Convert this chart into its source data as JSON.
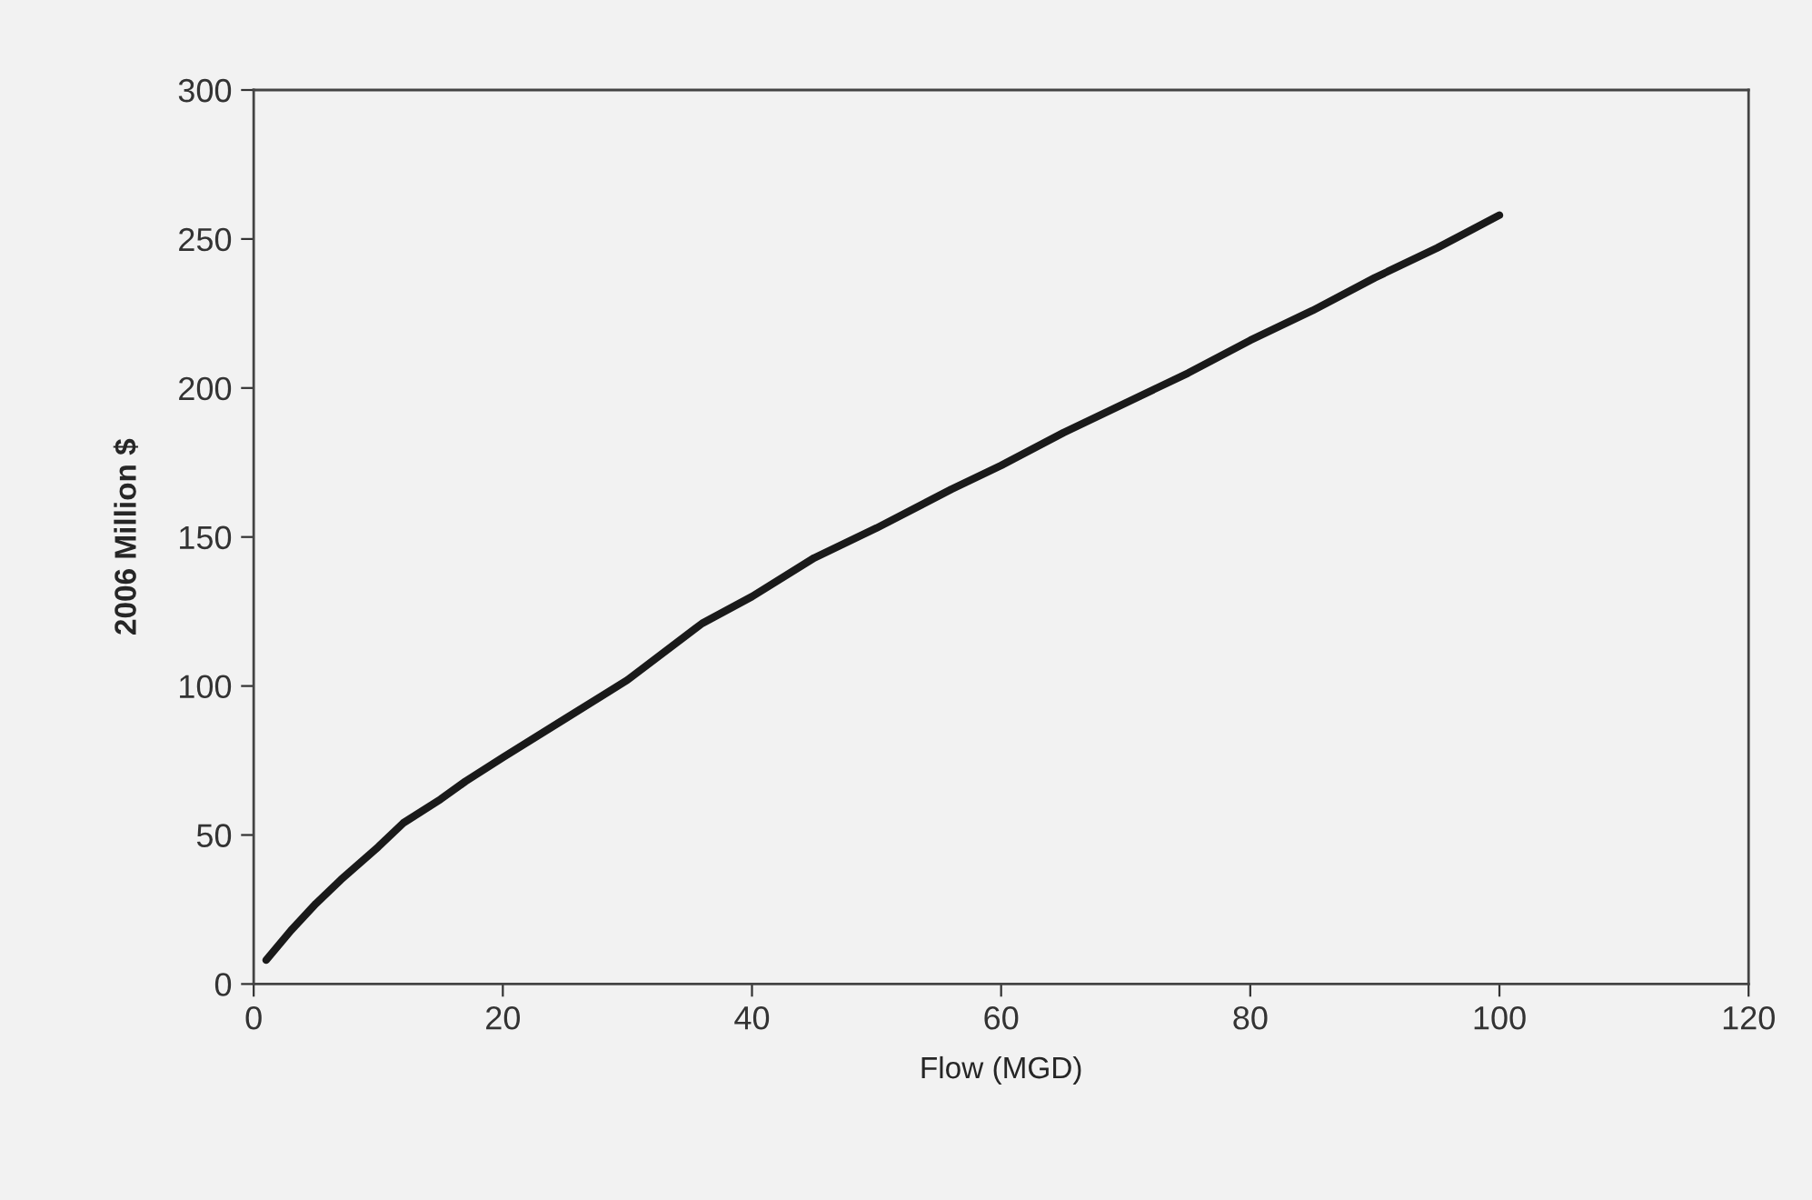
{
  "chart_data": {
    "type": "line",
    "xlabel": "Flow (MGD)",
    "ylabel": "2006 Million $",
    "series": [
      {
        "color": "#1a1a1a",
        "x": [
          1,
          3,
          5,
          7,
          10,
          12,
          15,
          17,
          20,
          25,
          30,
          36,
          40,
          45,
          50,
          56,
          60,
          65,
          70,
          75,
          80,
          85,
          90,
          95,
          100
        ],
        "values": [
          8,
          18,
          27,
          35,
          46,
          54,
          62,
          68,
          76,
          89,
          102,
          121,
          130,
          143,
          153,
          166,
          174,
          185,
          195,
          205,
          216,
          226,
          237,
          247,
          258
        ]
      }
    ],
    "xlim": [
      0,
      120
    ],
    "xticks": [
      0,
      20,
      40,
      60,
      80,
      100,
      120
    ],
    "ylim": [
      0,
      300
    ],
    "yticks": [
      0,
      50,
      100,
      150,
      200,
      250,
      300
    ],
    "grid": false,
    "legend": false,
    "marker": "none",
    "line_style": "solid"
  }
}
